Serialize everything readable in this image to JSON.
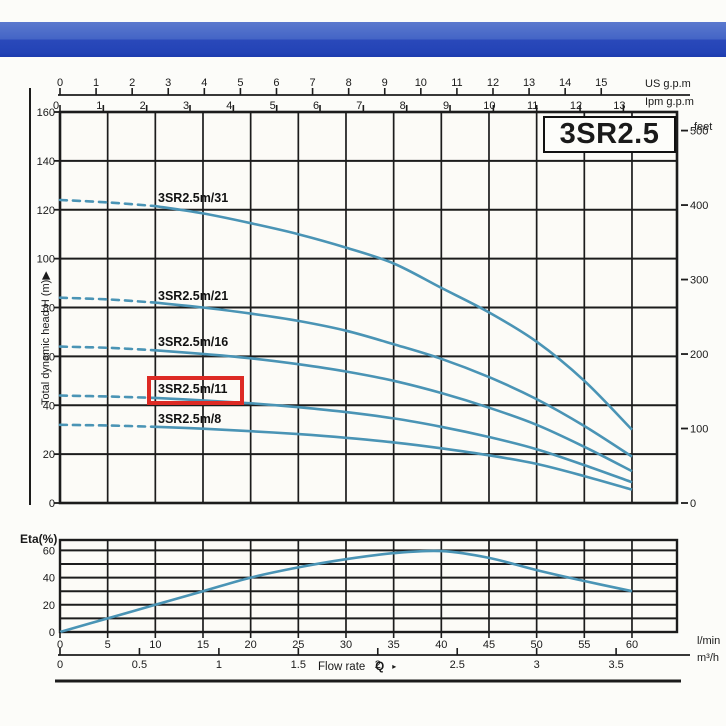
{
  "title_box": {
    "label": "3SR2.5"
  },
  "flow": {
    "label": "Flow rate",
    "symbol": "Q",
    "arrow": "▸"
  },
  "colors": {
    "curve_blue": "#4a94b5",
    "grid_black": "#1c1c1c",
    "highlight_red": "#dd2a24",
    "banner_blue_top": "#5b79ce",
    "banner_blue_bottom": "#2343b6"
  },
  "chart_data": [
    {
      "id": "head-curves",
      "type": "line",
      "title": "3SR2.5",
      "ylabel": "Total dynamic head H (m)",
      "ylabel_arrow": "▶",
      "ylim": [
        0,
        160
      ],
      "y_ticks": [
        0,
        20,
        40,
        60,
        80,
        100,
        120,
        140,
        160
      ],
      "x_unit": "l/min",
      "xlim": [
        0,
        64.7
      ],
      "grid": true,
      "dashed_until_lmin": 10,
      "x": [
        0,
        5,
        10,
        15,
        20,
        25,
        30,
        35,
        40,
        45,
        50,
        55,
        60
      ],
      "series": [
        {
          "name": "3SR2.5m/31",
          "highlighted": false,
          "values": [
            124,
            123,
            121.5,
            118.5,
            114.5,
            110,
            104.5,
            98,
            88,
            78,
            66,
            50,
            30
          ]
        },
        {
          "name": "3SR2.5m/21",
          "highlighted": false,
          "values": [
            84,
            83.3,
            82,
            80,
            77.5,
            74.5,
            70.5,
            65,
            59,
            51.5,
            42.5,
            31.5,
            19
          ]
        },
        {
          "name": "3SR2.5m/16",
          "highlighted": false,
          "values": [
            64,
            63.5,
            62.5,
            61,
            59.2,
            56.8,
            53.8,
            50,
            45,
            39,
            32,
            23,
            13
          ]
        },
        {
          "name": "3SR2.5m/11",
          "highlighted": true,
          "values": [
            44,
            43.6,
            43,
            42,
            40.8,
            39.2,
            37.2,
            34.6,
            31.2,
            27,
            22,
            15.5,
            8.5
          ]
        },
        {
          "name": "3SR2.5m/8",
          "highlighted": false,
          "values": [
            32,
            31.7,
            31.2,
            30.4,
            29.4,
            28.2,
            26.7,
            24.8,
            22.4,
            19.5,
            16,
            11,
            5.5
          ]
        }
      ],
      "top_axis_us_gpm": {
        "unit": "US g.p.m",
        "ticks": [
          0,
          1,
          2,
          3,
          4,
          5,
          6,
          7,
          8,
          9,
          10,
          11,
          12,
          13,
          14,
          15
        ]
      },
      "top_axis_imp_gpm": {
        "unit": "Ipm g.p.m",
        "ticks": [
          0,
          1,
          2,
          3,
          4,
          5,
          6,
          7,
          8,
          9,
          10,
          11,
          12,
          13
        ]
      },
      "right_axis": {
        "unit": "feet",
        "ticks": [
          500,
          400,
          300,
          200,
          100,
          0
        ]
      }
    },
    {
      "id": "efficiency",
      "type": "line",
      "ylabel": "Eta(%)",
      "ylim": [
        0,
        67
      ],
      "y_ticks": [
        0,
        20,
        40,
        60
      ],
      "grid": true,
      "x": [
        0,
        5,
        10,
        15,
        20,
        25,
        30,
        35,
        40,
        45,
        50,
        55,
        60
      ],
      "values": [
        0,
        10,
        20,
        30,
        40,
        47.5,
        53.5,
        58,
        59.5,
        54.5,
        45.5,
        37.5,
        30
      ],
      "x_axis_lmin": {
        "unit": "l/min",
        "ticks": [
          0,
          5,
          10,
          15,
          20,
          25,
          30,
          35,
          40,
          45,
          50,
          55,
          60
        ]
      },
      "x_axis_m3h": {
        "unit": "m³/h",
        "ticks": [
          0,
          0.5,
          1,
          1.5,
          2,
          2.5,
          3,
          3.5
        ]
      },
      "xlabel": "Flow rate Q"
    }
  ]
}
